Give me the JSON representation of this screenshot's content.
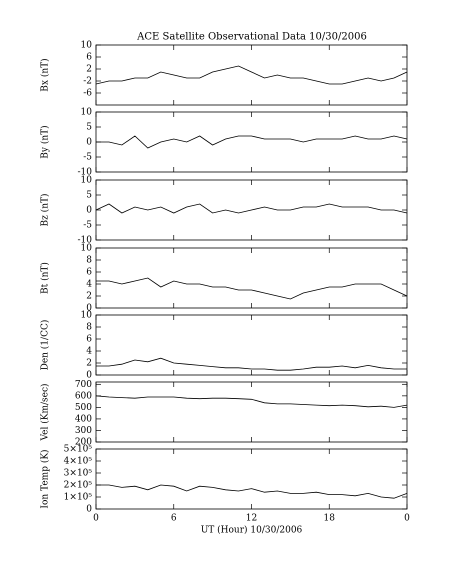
{
  "title": "ACE Satellite Observational Data   10/30/2006",
  "chart_data": [
    {
      "type": "line",
      "ylabel": "Bx (nT)",
      "color": "#000000",
      "ylim": [
        -10,
        10
      ],
      "yticks": [
        -6,
        -2,
        2,
        6,
        10
      ],
      "x": [
        0,
        1,
        2,
        3,
        4,
        5,
        6,
        7,
        8,
        9,
        10,
        11,
        12,
        13,
        14,
        15,
        16,
        17,
        18,
        19,
        20,
        21,
        22,
        23,
        24
      ],
      "values": [
        -3,
        -2,
        -2,
        -1,
        -1,
        1,
        0,
        -1,
        -1,
        1,
        2,
        3,
        1,
        -1,
        0,
        -1,
        -1,
        -2,
        -3,
        -3,
        -2,
        -1,
        -2,
        -1,
        1
      ]
    },
    {
      "type": "line",
      "ylabel": "By (nT)",
      "color": "#000000",
      "ylim": [
        -10,
        10
      ],
      "yticks": [
        -10,
        -5,
        0,
        5,
        10
      ],
      "x": [
        0,
        1,
        2,
        3,
        4,
        5,
        6,
        7,
        8,
        9,
        10,
        11,
        12,
        13,
        14,
        15,
        16,
        17,
        18,
        19,
        20,
        21,
        22,
        23,
        24
      ],
      "values": [
        0,
        0,
        -1,
        2,
        -2,
        0,
        1,
        0,
        2,
        -1,
        1,
        2,
        2,
        1,
        1,
        1,
        0,
        1,
        1,
        1,
        2,
        1,
        1,
        2,
        1
      ]
    },
    {
      "type": "line",
      "ylabel": "Bz (nT)",
      "color": "#000000",
      "ylim": [
        -10,
        10
      ],
      "yticks": [
        -10,
        -5,
        0,
        5,
        10
      ],
      "x": [
        0,
        1,
        2,
        3,
        4,
        5,
        6,
        7,
        8,
        9,
        10,
        11,
        12,
        13,
        14,
        15,
        16,
        17,
        18,
        19,
        20,
        21,
        22,
        23,
        24
      ],
      "values": [
        0,
        2,
        -1,
        1,
        0,
        1,
        -1,
        1,
        2,
        -1,
        0,
        -1,
        0,
        1,
        0,
        0,
        1,
        1,
        2,
        1,
        1,
        1,
        0,
        0,
        -1
      ]
    },
    {
      "type": "line",
      "ylabel": "Bt (nT)",
      "color": "#000000",
      "ylim": [
        0,
        10
      ],
      "yticks": [
        0,
        2,
        4,
        6,
        8,
        10
      ],
      "x": [
        0,
        1,
        2,
        3,
        4,
        5,
        6,
        7,
        8,
        9,
        10,
        11,
        12,
        13,
        14,
        15,
        16,
        17,
        18,
        19,
        20,
        21,
        22,
        23,
        24
      ],
      "values": [
        4.5,
        4.5,
        4,
        4.5,
        5,
        3.5,
        4.5,
        4,
        4,
        3.5,
        3.5,
        3,
        3,
        2.5,
        2,
        1.5,
        2.5,
        3,
        3.5,
        3.5,
        4,
        4,
        4,
        3,
        2
      ]
    },
    {
      "type": "line",
      "ylabel": "Den (1/CC)",
      "color": "#000000",
      "ylim": [
        0,
        10
      ],
      "yticks": [
        0,
        2,
        4,
        6,
        8,
        10
      ],
      "x": [
        0,
        1,
        2,
        3,
        4,
        5,
        6,
        7,
        8,
        9,
        10,
        11,
        12,
        13,
        14,
        15,
        16,
        17,
        18,
        19,
        20,
        21,
        22,
        23,
        24
      ],
      "values": [
        1.5,
        1.5,
        1.8,
        2.5,
        2.2,
        2.8,
        2,
        1.8,
        1.6,
        1.4,
        1.2,
        1.2,
        1,
        1,
        0.8,
        0.8,
        1,
        1.3,
        1.3,
        1.5,
        1.2,
        1.6,
        1.2,
        1,
        1
      ]
    },
    {
      "type": "line",
      "ylabel": "Vel (Km/sec)",
      "color": "#000000",
      "ylim": [
        200,
        720
      ],
      "yticks": [
        200,
        300,
        400,
        500,
        600,
        700
      ],
      "x": [
        0,
        1,
        2,
        3,
        4,
        5,
        6,
        7,
        8,
        9,
        10,
        11,
        12,
        13,
        14,
        15,
        16,
        17,
        18,
        19,
        20,
        21,
        22,
        23,
        24
      ],
      "values": [
        600,
        590,
        585,
        580,
        590,
        590,
        590,
        580,
        575,
        580,
        580,
        575,
        570,
        540,
        530,
        530,
        525,
        520,
        515,
        520,
        515,
        505,
        510,
        500,
        520
      ]
    },
    {
      "type": "line",
      "ylabel": "Ion Temp (K)",
      "color": "#000000",
      "ylim": [
        0,
        500000
      ],
      "yticks": [
        0,
        {
          "value": 100000,
          "label": "1×10⁵"
        },
        {
          "value": 200000,
          "label": "2×10⁵"
        },
        {
          "value": 300000,
          "label": "3×10⁵"
        },
        {
          "value": 400000,
          "label": "4×10⁵"
        },
        {
          "value": 500000,
          "label": "5×10⁵"
        }
      ],
      "x": [
        0,
        1,
        2,
        3,
        4,
        5,
        6,
        7,
        8,
        9,
        10,
        11,
        12,
        13,
        14,
        15,
        16,
        17,
        18,
        19,
        20,
        21,
        22,
        23,
        24
      ],
      "values": [
        200000,
        200000,
        180000,
        190000,
        160000,
        200000,
        190000,
        150000,
        190000,
        180000,
        160000,
        150000,
        170000,
        140000,
        150000,
        130000,
        130000,
        140000,
        120000,
        120000,
        110000,
        130000,
        100000,
        90000,
        130000
      ],
      "xlim": [
        0,
        24
      ],
      "xticks": [
        0,
        6,
        12,
        18,
        {
          "value": 24,
          "label": "0"
        }
      ],
      "xlabel": "UT (Hour)  10/30/2006"
    }
  ]
}
